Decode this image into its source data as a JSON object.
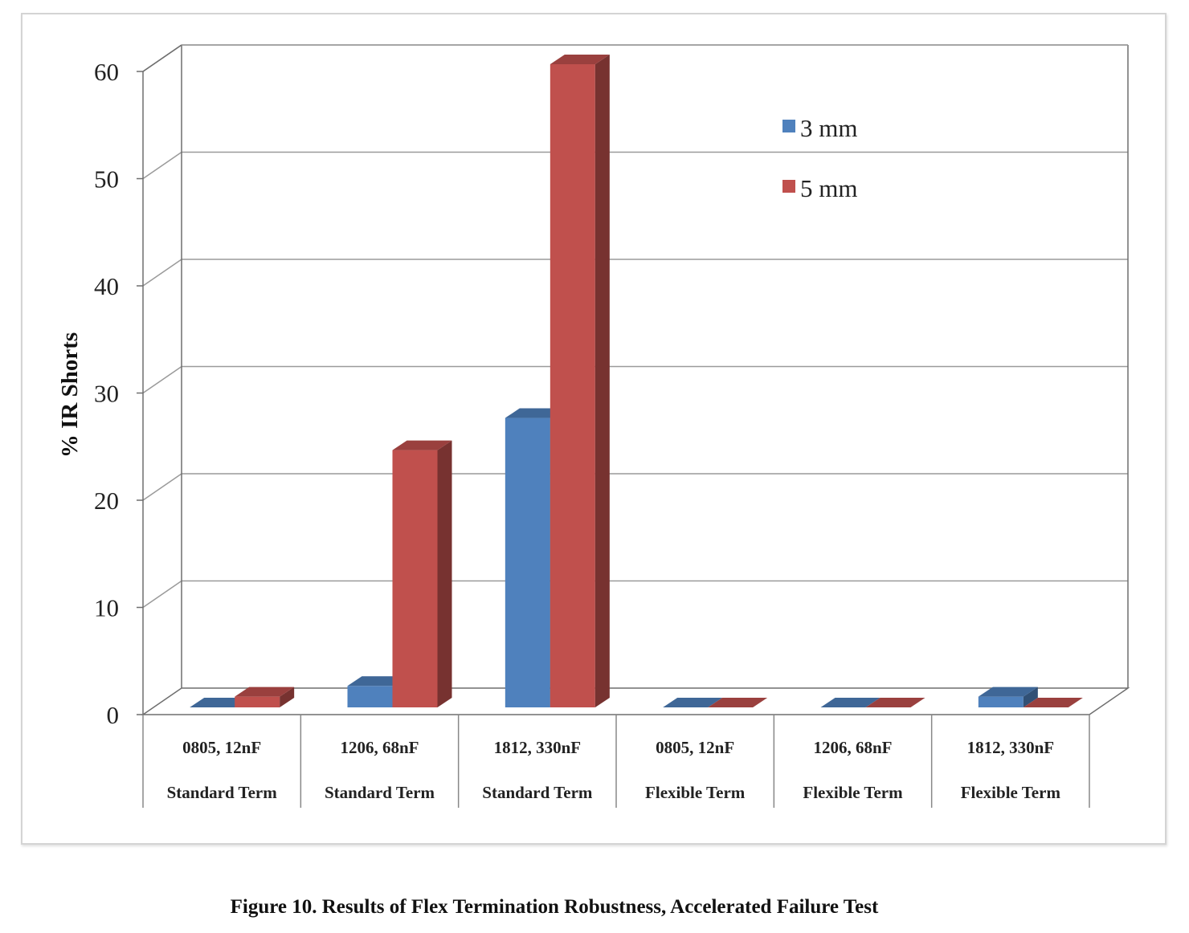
{
  "caption": "Figure 10. Results of Flex Termination Robustness, Accelerated Failure Test",
  "chart_data": {
    "type": "bar",
    "style": "3d-clustered",
    "title": "",
    "xlabel": "",
    "ylabel": "% IR Shorts",
    "ylim": [
      0,
      60
    ],
    "yticks": [
      0,
      10,
      20,
      30,
      40,
      50,
      60
    ],
    "grid": true,
    "legend_position": "top-right",
    "categories": [
      {
        "line1": "0805, 12nF",
        "line2": "Standard Term"
      },
      {
        "line1": "1206, 68nF",
        "line2": "Standard Term"
      },
      {
        "line1": "1812, 330nF",
        "line2": "Standard Term"
      },
      {
        "line1": "0805, 12nF",
        "line2": "Flexible Term"
      },
      {
        "line1": "1206, 68nF",
        "line2": "Flexible Term"
      },
      {
        "line1": "1812, 330nF",
        "line2": "Flexible Term"
      }
    ],
    "series": [
      {
        "name": "3 mm",
        "color": "#4f81bd",
        "values": [
          0,
          2,
          27,
          0,
          0,
          1
        ]
      },
      {
        "name": "5 mm",
        "color": "#c0504d",
        "values": [
          1,
          24,
          60,
          0,
          0,
          0
        ]
      }
    ]
  }
}
